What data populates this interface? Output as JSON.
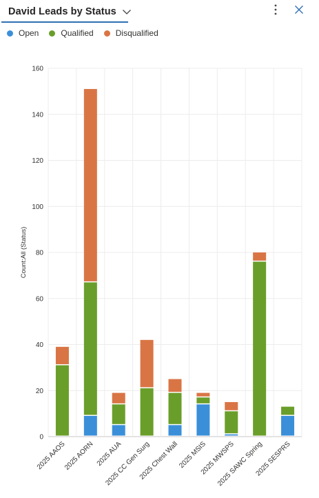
{
  "header": {
    "title": "David Leads by Status",
    "chevron_icon": "chevron-down-icon",
    "more_icon": "more-vertical-icon",
    "close_icon": "close-icon"
  },
  "legend": [
    {
      "label": "Open",
      "color": "#3b8fd9"
    },
    {
      "label": "Qualified",
      "color": "#6a9e2a"
    },
    {
      "label": "Disqualified",
      "color": "#d97545"
    }
  ],
  "chart_data": {
    "type": "bar",
    "stacked": true,
    "ylabel": "Count:All (Status)",
    "xlabel": "",
    "ylim": [
      0,
      160
    ],
    "yticks": [
      0,
      20,
      40,
      60,
      80,
      100,
      120,
      140,
      160
    ],
    "grid": true,
    "legend_position": "top-left",
    "categories": [
      "2025 AAOS",
      "2025 AORN",
      "2025 AUA",
      "2025 CC Gen Surg",
      "2025 Chest Wall",
      "2025 MSIS",
      "2025 MWSPS",
      "2025 SAWC Spring",
      "2025 SESPRS"
    ],
    "series": [
      {
        "name": "Open",
        "color": "#3b8fd9",
        "values": [
          0,
          9,
          5,
          0,
          5,
          14,
          1,
          0,
          9
        ]
      },
      {
        "name": "Qualified",
        "color": "#6a9e2a",
        "values": [
          31,
          58,
          9,
          21,
          14,
          3,
          10,
          76,
          4
        ]
      },
      {
        "name": "Disqualified",
        "color": "#d97545",
        "values": [
          8,
          84,
          5,
          21,
          6,
          2,
          4,
          4,
          0
        ]
      }
    ]
  }
}
